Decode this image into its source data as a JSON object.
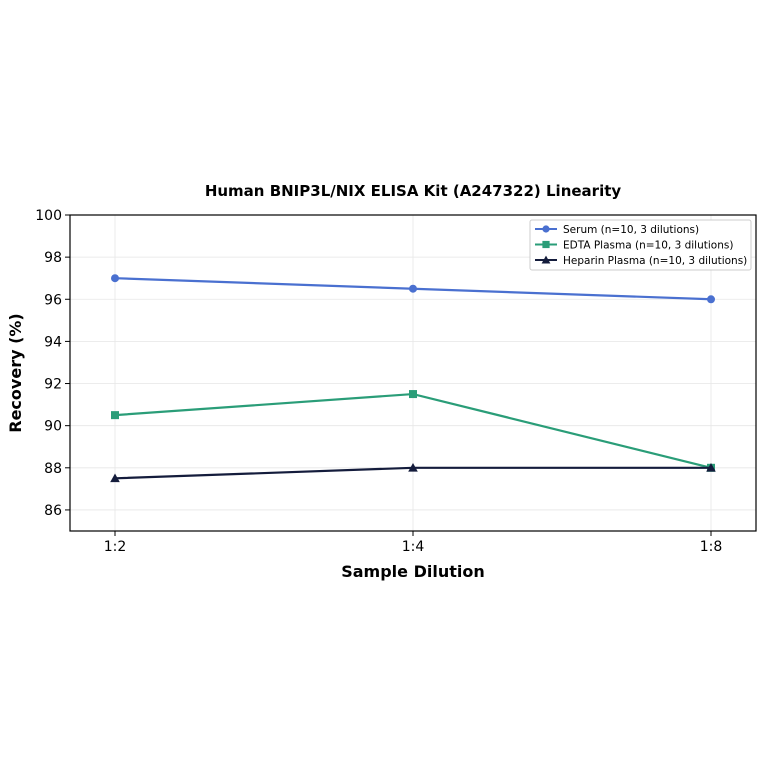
{
  "chart_data": {
    "type": "line",
    "title": "Human BNIP3L/NIX ELISA Kit (A247322) Linearity",
    "xlabel": "Sample Dilution",
    "ylabel": "Recovery (%)",
    "categories": [
      "1:2",
      "1:4",
      "1:8"
    ],
    "ylim": [
      85,
      100
    ],
    "yticks": [
      "86",
      "88",
      "90",
      "92",
      "94",
      "96",
      "98",
      "100"
    ],
    "grid": true,
    "legend_position": "top-right",
    "series": [
      {
        "name": "Serum (n=10, 3 dilutions)",
        "values": [
          97.0,
          96.5,
          96.0
        ],
        "color": "#4a70d0",
        "marker": "circle"
      },
      {
        "name": "EDTA Plasma (n=10, 3 dilutions)",
        "values": [
          90.5,
          91.5,
          88.0
        ],
        "color": "#2a9d78",
        "marker": "square"
      },
      {
        "name": "Heparin Plasma (n=10, 3 dilutions)",
        "values": [
          87.5,
          88.0,
          88.0
        ],
        "color": "#141c3c",
        "marker": "triangle"
      }
    ]
  }
}
